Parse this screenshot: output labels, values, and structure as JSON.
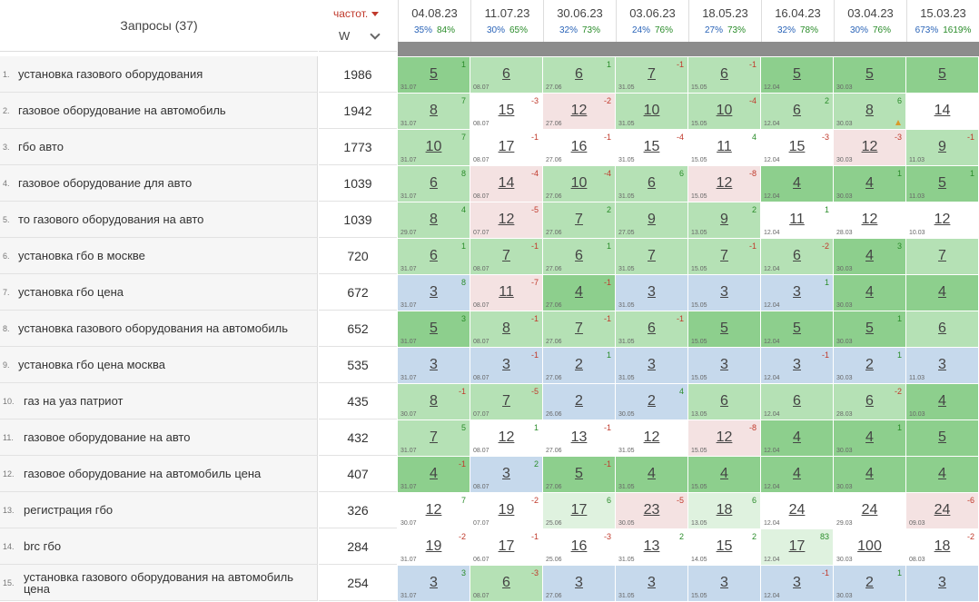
{
  "header": {
    "queries_label": "Запросы (37)",
    "freq_label": "частот.",
    "freq_mode": "W"
  },
  "dates": [
    {
      "date": "04.08.23",
      "p1": "35%",
      "p2": "84%"
    },
    {
      "date": "11.07.23",
      "p1": "30%",
      "p2": "65%"
    },
    {
      "date": "30.06.23",
      "p1": "32%",
      "p2": "73%"
    },
    {
      "date": "03.06.23",
      "p1": "24%",
      "p2": "76%"
    },
    {
      "date": "18.05.23",
      "p1": "27%",
      "p2": "73%"
    },
    {
      "date": "16.04.23",
      "p1": "32%",
      "p2": "78%"
    },
    {
      "date": "03.04.23",
      "p1": "30%",
      "p2": "76%"
    },
    {
      "date": "15.03.23",
      "p1": "673%",
      "p2": "1619%"
    }
  ],
  "colors": {
    "dark_green": "#8dcf8d",
    "green": "#b5e1b5",
    "light_green": "#dff2df",
    "blue": "#c6d9ec",
    "pink": "#f4e2e2",
    "white": "#ffffff"
  },
  "rows": [
    {
      "n": "1.",
      "q": "установка газового оборудования",
      "f": "1986",
      "c": [
        {
          "p": "5",
          "d": "1",
          "s": "31.07",
          "bg": "dark_green"
        },
        {
          "p": "6",
          "d": "",
          "s": "08.07",
          "bg": "green"
        },
        {
          "p": "6",
          "d": "1",
          "s": "27.06",
          "bg": "green"
        },
        {
          "p": "7",
          "d": "-1",
          "s": "31.05",
          "bg": "green"
        },
        {
          "p": "6",
          "d": "-1",
          "s": "15.05",
          "bg": "green"
        },
        {
          "p": "5",
          "d": "",
          "s": "12.04",
          "bg": "dark_green"
        },
        {
          "p": "5",
          "d": "",
          "s": "30.03",
          "bg": "dark_green"
        },
        {
          "p": "5",
          "d": "",
          "s": "",
          "bg": "dark_green"
        }
      ]
    },
    {
      "n": "2.",
      "q": "газовое оборудование на автомобиль",
      "f": "1942",
      "c": [
        {
          "p": "8",
          "d": "7",
          "s": "31.07",
          "bg": "green"
        },
        {
          "p": "15",
          "d": "-3",
          "s": "08.07",
          "bg": "white"
        },
        {
          "p": "12",
          "d": "-2",
          "s": "27.06",
          "bg": "pink"
        },
        {
          "p": "10",
          "d": "",
          "s": "31.05",
          "bg": "green"
        },
        {
          "p": "10",
          "d": "-4",
          "s": "15.05",
          "bg": "green"
        },
        {
          "p": "6",
          "d": "2",
          "s": "12.04",
          "bg": "green"
        },
        {
          "p": "8",
          "d": "6",
          "s": "30.03",
          "bg": "green",
          "warn": true
        },
        {
          "p": "14",
          "d": "",
          "s": "",
          "bg": "white"
        }
      ]
    },
    {
      "n": "3.",
      "q": "гбо авто",
      "f": "1773",
      "c": [
        {
          "p": "10",
          "d": "7",
          "s": "31.07",
          "bg": "green"
        },
        {
          "p": "17",
          "d": "-1",
          "s": "08.07",
          "bg": "white"
        },
        {
          "p": "16",
          "d": "-1",
          "s": "27.06",
          "bg": "white"
        },
        {
          "p": "15",
          "d": "-4",
          "s": "31.05",
          "bg": "white"
        },
        {
          "p": "11",
          "d": "4",
          "s": "15.05",
          "bg": "white"
        },
        {
          "p": "15",
          "d": "-3",
          "s": "12.04",
          "bg": "white"
        },
        {
          "p": "12",
          "d": "-3",
          "s": "30.03",
          "bg": "pink"
        },
        {
          "p": "9",
          "d": "-1",
          "s": "11.03",
          "bg": "green"
        }
      ]
    },
    {
      "n": "4.",
      "q": "газовое оборудование для авто",
      "f": "1039",
      "c": [
        {
          "p": "6",
          "d": "8",
          "s": "31.07",
          "bg": "green"
        },
        {
          "p": "14",
          "d": "-4",
          "s": "08.07",
          "bg": "pink"
        },
        {
          "p": "10",
          "d": "-4",
          "s": "27.06",
          "bg": "green"
        },
        {
          "p": "6",
          "d": "6",
          "s": "31.05",
          "bg": "green"
        },
        {
          "p": "12",
          "d": "-8",
          "s": "15.05",
          "bg": "pink"
        },
        {
          "p": "4",
          "d": "",
          "s": "12.04",
          "bg": "dark_green"
        },
        {
          "p": "4",
          "d": "1",
          "s": "30.03",
          "bg": "dark_green"
        },
        {
          "p": "5",
          "d": "1",
          "s": "11.03",
          "bg": "dark_green"
        }
      ]
    },
    {
      "n": "5.",
      "q": "то газового оборудования на авто",
      "f": "1039",
      "c": [
        {
          "p": "8",
          "d": "4",
          "s": "29.07",
          "bg": "green"
        },
        {
          "p": "12",
          "d": "-5",
          "s": "07.07",
          "bg": "pink"
        },
        {
          "p": "7",
          "d": "2",
          "s": "27.06",
          "bg": "green"
        },
        {
          "p": "9",
          "d": "",
          "s": "27.05",
          "bg": "green"
        },
        {
          "p": "9",
          "d": "2",
          "s": "13.05",
          "bg": "green"
        },
        {
          "p": "11",
          "d": "1",
          "s": "12.04",
          "bg": "white"
        },
        {
          "p": "12",
          "d": "",
          "s": "28.03",
          "bg": "white"
        },
        {
          "p": "12",
          "d": "",
          "s": "10.03",
          "bg": "white"
        }
      ]
    },
    {
      "n": "6.",
      "q": "установка гбо в москве",
      "f": "720",
      "c": [
        {
          "p": "6",
          "d": "1",
          "s": "31.07",
          "bg": "green"
        },
        {
          "p": "7",
          "d": "-1",
          "s": "08.07",
          "bg": "green"
        },
        {
          "p": "6",
          "d": "1",
          "s": "27.06",
          "bg": "green"
        },
        {
          "p": "7",
          "d": "",
          "s": "31.05",
          "bg": "green"
        },
        {
          "p": "7",
          "d": "-1",
          "s": "15.05",
          "bg": "green"
        },
        {
          "p": "6",
          "d": "-2",
          "s": "12.04",
          "bg": "green"
        },
        {
          "p": "4",
          "d": "3",
          "s": "30.03",
          "bg": "dark_green"
        },
        {
          "p": "7",
          "d": "",
          "s": "",
          "bg": "green"
        }
      ]
    },
    {
      "n": "7.",
      "q": "установка гбо цена",
      "f": "672",
      "c": [
        {
          "p": "3",
          "d": "8",
          "s": "31.07",
          "bg": "blue"
        },
        {
          "p": "11",
          "d": "-7",
          "s": "08.07",
          "bg": "pink"
        },
        {
          "p": "4",
          "d": "-1",
          "s": "27.06",
          "bg": "dark_green"
        },
        {
          "p": "3",
          "d": "",
          "s": "31.05",
          "bg": "blue"
        },
        {
          "p": "3",
          "d": "",
          "s": "15.05",
          "bg": "blue"
        },
        {
          "p": "3",
          "d": "1",
          "s": "12.04",
          "bg": "blue"
        },
        {
          "p": "4",
          "d": "",
          "s": "30.03",
          "bg": "dark_green"
        },
        {
          "p": "4",
          "d": "",
          "s": "",
          "bg": "dark_green"
        }
      ]
    },
    {
      "n": "8.",
      "q": "установка газового оборудования на автомобиль",
      "f": "652",
      "c": [
        {
          "p": "5",
          "d": "3",
          "s": "31.07",
          "bg": "dark_green"
        },
        {
          "p": "8",
          "d": "-1",
          "s": "08.07",
          "bg": "green"
        },
        {
          "p": "7",
          "d": "-1",
          "s": "27.06",
          "bg": "green"
        },
        {
          "p": "6",
          "d": "-1",
          "s": "31.05",
          "bg": "green"
        },
        {
          "p": "5",
          "d": "",
          "s": "15.05",
          "bg": "dark_green"
        },
        {
          "p": "5",
          "d": "",
          "s": "12.04",
          "bg": "dark_green"
        },
        {
          "p": "5",
          "d": "1",
          "s": "30.03",
          "bg": "dark_green"
        },
        {
          "p": "6",
          "d": "",
          "s": "",
          "bg": "green"
        }
      ]
    },
    {
      "n": "9.",
      "q": "установка гбо цена москва",
      "f": "535",
      "c": [
        {
          "p": "3",
          "d": "",
          "s": "31.07",
          "bg": "blue"
        },
        {
          "p": "3",
          "d": "-1",
          "s": "08.07",
          "bg": "blue"
        },
        {
          "p": "2",
          "d": "1",
          "s": "27.06",
          "bg": "blue"
        },
        {
          "p": "3",
          "d": "",
          "s": "31.05",
          "bg": "blue"
        },
        {
          "p": "3",
          "d": "",
          "s": "15.05",
          "bg": "blue"
        },
        {
          "p": "3",
          "d": "-1",
          "s": "12.04",
          "bg": "blue"
        },
        {
          "p": "2",
          "d": "1",
          "s": "30.03",
          "bg": "blue"
        },
        {
          "p": "3",
          "d": "",
          "s": "11.03",
          "bg": "blue"
        }
      ]
    },
    {
      "n": "10.",
      "q": "газ на уаз патриот",
      "f": "435",
      "c": [
        {
          "p": "8",
          "d": "-1",
          "s": "30.07",
          "bg": "green"
        },
        {
          "p": "7",
          "d": "-5",
          "s": "07.07",
          "bg": "green"
        },
        {
          "p": "2",
          "d": "",
          "s": "26.06",
          "bg": "blue"
        },
        {
          "p": "2",
          "d": "4",
          "s": "30.05",
          "bg": "blue"
        },
        {
          "p": "6",
          "d": "",
          "s": "13.05",
          "bg": "green"
        },
        {
          "p": "6",
          "d": "",
          "s": "12.04",
          "bg": "green"
        },
        {
          "p": "6",
          "d": "-2",
          "s": "28.03",
          "bg": "green"
        },
        {
          "p": "4",
          "d": "",
          "s": "10.03",
          "bg": "dark_green"
        }
      ]
    },
    {
      "n": "11.",
      "q": "газовое оборудование на авто",
      "f": "432",
      "c": [
        {
          "p": "7",
          "d": "5",
          "s": "31.07",
          "bg": "green"
        },
        {
          "p": "12",
          "d": "1",
          "s": "08.07",
          "bg": "white"
        },
        {
          "p": "13",
          "d": "-1",
          "s": "27.06",
          "bg": "white"
        },
        {
          "p": "12",
          "d": "",
          "s": "31.05",
          "bg": "white"
        },
        {
          "p": "12",
          "d": "-8",
          "s": "15.05",
          "bg": "pink"
        },
        {
          "p": "4",
          "d": "",
          "s": "12.04",
          "bg": "dark_green"
        },
        {
          "p": "4",
          "d": "1",
          "s": "30.03",
          "bg": "dark_green"
        },
        {
          "p": "5",
          "d": "",
          "s": "",
          "bg": "dark_green"
        }
      ]
    },
    {
      "n": "12.",
      "q": "газовое оборудование на автомобиль цена",
      "f": "407",
      "c": [
        {
          "p": "4",
          "d": "-1",
          "s": "31.07",
          "bg": "dark_green"
        },
        {
          "p": "3",
          "d": "2",
          "s": "08.07",
          "bg": "blue"
        },
        {
          "p": "5",
          "d": "-1",
          "s": "27.06",
          "bg": "dark_green"
        },
        {
          "p": "4",
          "d": "",
          "s": "31.05",
          "bg": "dark_green"
        },
        {
          "p": "4",
          "d": "",
          "s": "15.05",
          "bg": "dark_green"
        },
        {
          "p": "4",
          "d": "",
          "s": "12.04",
          "bg": "dark_green"
        },
        {
          "p": "4",
          "d": "",
          "s": "30.03",
          "bg": "dark_green"
        },
        {
          "p": "4",
          "d": "",
          "s": "",
          "bg": "dark_green"
        }
      ]
    },
    {
      "n": "13.",
      "q": "регистрация гбо",
      "f": "326",
      "c": [
        {
          "p": "12",
          "d": "7",
          "s": "30.07",
          "bg": "white"
        },
        {
          "p": "19",
          "d": "-2",
          "s": "07.07",
          "bg": "white"
        },
        {
          "p": "17",
          "d": "6",
          "s": "25.06",
          "bg": "light_green"
        },
        {
          "p": "23",
          "d": "-5",
          "s": "30.05",
          "bg": "pink"
        },
        {
          "p": "18",
          "d": "6",
          "s": "13.05",
          "bg": "light_green"
        },
        {
          "p": "24",
          "d": "",
          "s": "12.04",
          "bg": "white"
        },
        {
          "p": "24",
          "d": "",
          "s": "29.03",
          "bg": "white"
        },
        {
          "p": "24",
          "d": "-6",
          "s": "09.03",
          "bg": "pink"
        }
      ]
    },
    {
      "n": "14.",
      "q": "brc гбо",
      "f": "284",
      "c": [
        {
          "p": "19",
          "d": "-2",
          "s": "31.07",
          "bg": "white"
        },
        {
          "p": "17",
          "d": "-1",
          "s": "06.07",
          "bg": "white"
        },
        {
          "p": "16",
          "d": "-3",
          "s": "25.06",
          "bg": "white"
        },
        {
          "p": "13",
          "d": "2",
          "s": "31.05",
          "bg": "white"
        },
        {
          "p": "15",
          "d": "2",
          "s": "14.05",
          "bg": "white"
        },
        {
          "p": "17",
          "d": "83",
          "s": "12.04",
          "bg": "light_green"
        },
        {
          "p": "100",
          "d": "",
          "s": "30.03",
          "bg": "white"
        },
        {
          "p": "18",
          "d": "-2",
          "s": "08.03",
          "bg": "white"
        }
      ]
    },
    {
      "n": "15.",
      "q": "установка газового оборудования на автомобиль цена",
      "f": "254",
      "c": [
        {
          "p": "3",
          "d": "3",
          "s": "31.07",
          "bg": "blue"
        },
        {
          "p": "6",
          "d": "-3",
          "s": "08.07",
          "bg": "green"
        },
        {
          "p": "3",
          "d": "",
          "s": "27.06",
          "bg": "blue"
        },
        {
          "p": "3",
          "d": "",
          "s": "31.05",
          "bg": "blue"
        },
        {
          "p": "3",
          "d": "",
          "s": "15.05",
          "bg": "blue"
        },
        {
          "p": "3",
          "d": "-1",
          "s": "12.04",
          "bg": "blue"
        },
        {
          "p": "2",
          "d": "1",
          "s": "30.03",
          "bg": "blue"
        },
        {
          "p": "3",
          "d": "",
          "s": "",
          "bg": "blue"
        }
      ]
    }
  ]
}
